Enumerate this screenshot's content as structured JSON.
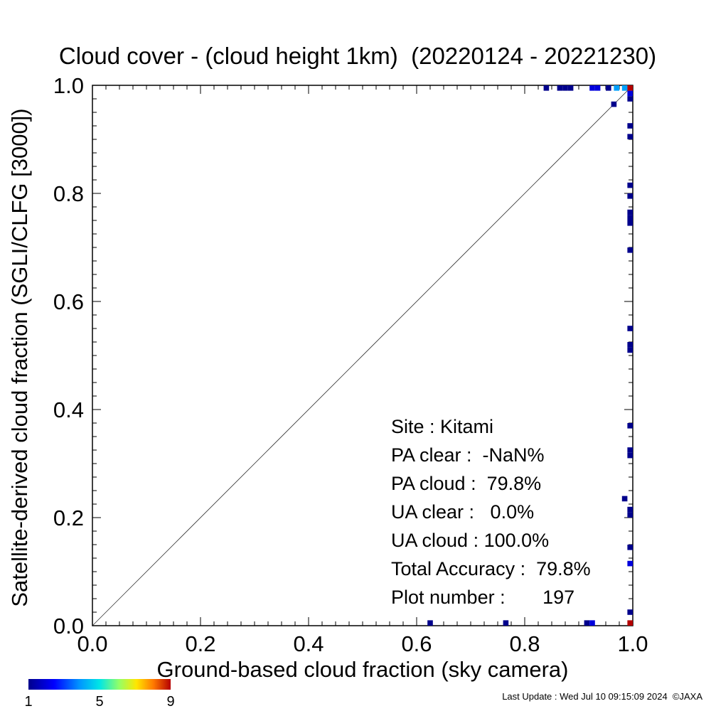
{
  "chart_data": {
    "type": "heatmap",
    "title": "Cloud cover - (cloud height 1km)  (20220124 - 20221230)",
    "xlabel": "Ground-based cloud fraction (sky camera)",
    "ylabel": "Satellite-derived cloud fraction (SGLI/CLFG [3000])",
    "xlim": [
      0,
      1
    ],
    "ylim": [
      0,
      1
    ],
    "x_ticks": [
      "0.0",
      "0.2",
      "0.4",
      "0.6",
      "0.8",
      "1.0"
    ],
    "y_ticks": [
      "0.0",
      "0.2",
      "0.4",
      "0.6",
      "0.8",
      "1.0"
    ],
    "diagonal_line": true,
    "grid": false,
    "colorbar": {
      "min": 1,
      "max": 9,
      "ticks": [
        "1",
        "5",
        "9"
      ],
      "colormap": "rainbow"
    },
    "points": [
      {
        "x": 0.84,
        "y": 0.995,
        "count": 1
      },
      {
        "x": 0.865,
        "y": 0.995,
        "count": 1
      },
      {
        "x": 0.875,
        "y": 0.995,
        "count": 1
      },
      {
        "x": 0.885,
        "y": 0.995,
        "count": 1
      },
      {
        "x": 0.925,
        "y": 0.995,
        "count": 2
      },
      {
        "x": 0.935,
        "y": 0.995,
        "count": 2
      },
      {
        "x": 0.955,
        "y": 0.995,
        "count": 1
      },
      {
        "x": 0.97,
        "y": 0.995,
        "count": 4
      },
      {
        "x": 0.985,
        "y": 0.995,
        "count": 4
      },
      {
        "x": 0.995,
        "y": 0.995,
        "count": 9
      },
      {
        "x": 0.995,
        "y": 0.985,
        "count": 2
      },
      {
        "x": 0.995,
        "y": 0.975,
        "count": 1
      },
      {
        "x": 0.965,
        "y": 0.965,
        "count": 1
      },
      {
        "x": 0.995,
        "y": 0.925,
        "count": 1
      },
      {
        "x": 0.995,
        "y": 0.905,
        "count": 1
      },
      {
        "x": 0.995,
        "y": 0.815,
        "count": 1
      },
      {
        "x": 0.995,
        "y": 0.795,
        "count": 1
      },
      {
        "x": 0.995,
        "y": 0.765,
        "count": 1
      },
      {
        "x": 0.995,
        "y": 0.755,
        "count": 1
      },
      {
        "x": 0.995,
        "y": 0.745,
        "count": 1
      },
      {
        "x": 0.995,
        "y": 0.695,
        "count": 1
      },
      {
        "x": 0.995,
        "y": 0.55,
        "count": 1
      },
      {
        "x": 0.995,
        "y": 0.52,
        "count": 1
      },
      {
        "x": 0.995,
        "y": 0.51,
        "count": 1
      },
      {
        "x": 0.995,
        "y": 0.37,
        "count": 1
      },
      {
        "x": 0.995,
        "y": 0.325,
        "count": 1
      },
      {
        "x": 0.995,
        "y": 0.315,
        "count": 1
      },
      {
        "x": 0.985,
        "y": 0.235,
        "count": 1
      },
      {
        "x": 0.995,
        "y": 0.215,
        "count": 1
      },
      {
        "x": 0.995,
        "y": 0.205,
        "count": 1
      },
      {
        "x": 0.995,
        "y": 0.145,
        "count": 1
      },
      {
        "x": 0.995,
        "y": 0.115,
        "count": 2
      },
      {
        "x": 0.995,
        "y": 0.025,
        "count": 1
      },
      {
        "x": 0.625,
        "y": 0.005,
        "count": 1
      },
      {
        "x": 0.765,
        "y": 0.005,
        "count": 1
      },
      {
        "x": 0.915,
        "y": 0.005,
        "count": 1
      },
      {
        "x": 0.925,
        "y": 0.005,
        "count": 2
      },
      {
        "x": 0.995,
        "y": 0.005,
        "count": 9
      }
    ],
    "stats": [
      "Site : Kitami",
      "PA clear :  -NaN%",
      "PA cloud :  79.8%",
      "UA clear :   0.0%",
      "UA cloud : 100.0%",
      "Total Accuracy :  79.8%",
      "Plot number :       197"
    ]
  },
  "footer": {
    "last_update": "Last Update : Wed Jul 10 09:15:09 2024  ©JAXA"
  }
}
